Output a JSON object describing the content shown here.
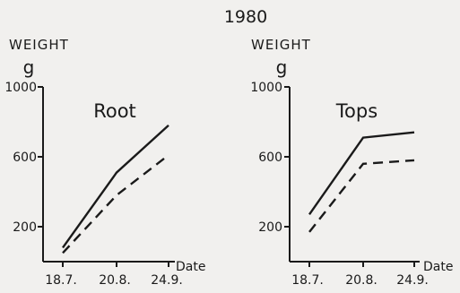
{
  "title": "1980",
  "chart_data": [
    {
      "type": "line",
      "title": "Root",
      "ylabel": "WEIGHT",
      "yunit": "g",
      "xlabel": "Date",
      "categories": [
        "18.7.",
        "20.8.",
        "24.9."
      ],
      "ylim": [
        0,
        1000
      ],
      "yticks": [
        200,
        600,
        1000
      ],
      "grid": false,
      "legend": "none",
      "series": [
        {
          "style": "solid",
          "values": [
            80,
            510,
            780
          ]
        },
        {
          "style": "dashed",
          "values": [
            50,
            380,
            610
          ]
        }
      ]
    },
    {
      "type": "line",
      "title": "Tops",
      "ylabel": "WEIGHT",
      "yunit": "g",
      "xlabel": "Date",
      "categories": [
        "18.7.",
        "20.8.",
        "24.9."
      ],
      "ylim": [
        0,
        1000
      ],
      "yticks": [
        200,
        600,
        1000
      ],
      "grid": false,
      "legend": "none",
      "series": [
        {
          "style": "solid",
          "values": [
            270,
            710,
            740
          ]
        },
        {
          "style": "dashed",
          "values": [
            170,
            560,
            580
          ]
        }
      ]
    }
  ]
}
